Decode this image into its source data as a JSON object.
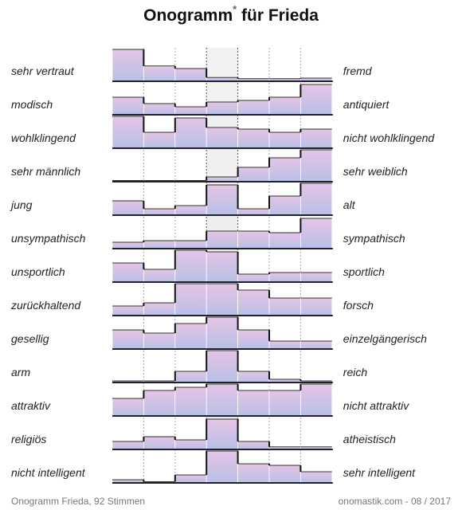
{
  "chart_data": {
    "type": "bar",
    "title": "Onogramm",
    "title_mark": "*",
    "title_suffix": "für Frieda",
    "columns": 7,
    "highlight_column": 3,
    "footer_left": "Onogramm Frieda, 92 Stimmen",
    "footer_right": "onomastik.com - 08 / 2017",
    "colors": {
      "bar_blue": "#b8c0e6",
      "bar_pink": "#e4c4e6",
      "highlight_bg": "#ededed",
      "row_line": "#222222"
    },
    "rows": [
      {
        "left": "sehr vertraut",
        "right": "fremd",
        "values": [
          1.0,
          0.48,
          0.4,
          0.12,
          0.08,
          0.08,
          0.1
        ]
      },
      {
        "left": "modisch",
        "right": "antiquiert",
        "values": [
          0.55,
          0.35,
          0.25,
          0.4,
          0.45,
          0.55,
          0.95
        ]
      },
      {
        "left": "wohlklingend",
        "right": "nicht wohlklingend",
        "values": [
          1.0,
          0.5,
          0.95,
          0.65,
          0.6,
          0.5,
          0.6
        ]
      },
      {
        "left": "sehr männlich",
        "right": "sehr weiblich",
        "values": [
          0.0,
          0.0,
          0.0,
          0.15,
          0.45,
          0.75,
          1.0
        ]
      },
      {
        "left": "jung",
        "right": "alt",
        "values": [
          0.45,
          0.2,
          0.3,
          0.95,
          0.2,
          0.6,
          1.0
        ]
      },
      {
        "left": "unsympathisch",
        "right": "sympathisch",
        "values": [
          0.2,
          0.25,
          0.25,
          0.55,
          0.55,
          0.5,
          0.95
        ]
      },
      {
        "left": "unsportlich",
        "right": "sportlich",
        "values": [
          0.6,
          0.4,
          1.0,
          0.95,
          0.25,
          0.3,
          0.3
        ]
      },
      {
        "left": "zurückhaltend",
        "right": "forsch",
        "values": [
          0.3,
          0.4,
          1.0,
          1.0,
          0.8,
          0.55,
          0.55
        ]
      },
      {
        "left": "gesellig",
        "right": "einzelgängerisch",
        "values": [
          0.6,
          0.5,
          0.8,
          1.0,
          0.6,
          0.25,
          0.25
        ]
      },
      {
        "left": "arm",
        "right": "reich",
        "values": [
          0.05,
          0.05,
          0.35,
          1.0,
          0.35,
          0.1,
          0.05
        ]
      },
      {
        "left": "attraktiv",
        "right": "nicht attraktiv",
        "values": [
          0.55,
          0.8,
          0.9,
          1.0,
          0.8,
          0.8,
          1.0
        ]
      },
      {
        "left": "religiös",
        "right": "atheistisch",
        "values": [
          0.25,
          0.4,
          0.3,
          0.95,
          0.25,
          0.08,
          0.08
        ]
      },
      {
        "left": "nicht intelligent",
        "right": "sehr intelligent",
        "values": [
          0.1,
          0.03,
          0.25,
          1.0,
          0.6,
          0.55,
          0.35
        ]
      }
    ]
  }
}
